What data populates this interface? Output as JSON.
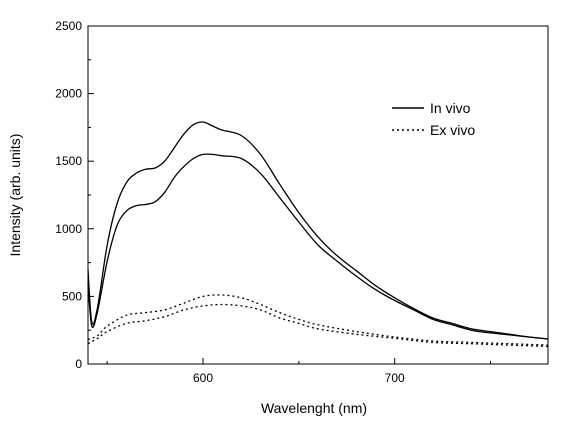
{
  "chart_data": {
    "type": "line",
    "title": "",
    "xlabel": "Wavelenght (nm)",
    "ylabel": "Intensity (arb. units)",
    "xlim": [
      540,
      780
    ],
    "ylim": [
      0,
      2500
    ],
    "x_ticks": [
      600,
      700
    ],
    "y_ticks": [
      0,
      500,
      1000,
      1500,
      2000,
      2500
    ],
    "grid": false,
    "legend_position": "top-right",
    "legend": [
      {
        "name": "In vivo",
        "style": "solid"
      },
      {
        "name": "Ex vivo",
        "style": "dotted"
      }
    ],
    "series": [
      {
        "name": "In vivo",
        "style": "solid",
        "color": "#000000",
        "x": [
          540,
          542,
          545,
          550,
          555,
          560,
          565,
          570,
          575,
          580,
          585,
          590,
          595,
          600,
          605,
          610,
          620,
          630,
          640,
          650,
          660,
          670,
          680,
          690,
          700,
          710,
          720,
          730,
          740,
          750,
          760,
          770,
          780
        ],
        "y": [
          700,
          310,
          420,
          880,
          1180,
          1340,
          1410,
          1440,
          1450,
          1500,
          1600,
          1700,
          1770,
          1790,
          1760,
          1730,
          1690,
          1550,
          1330,
          1120,
          940,
          800,
          690,
          580,
          490,
          410,
          340,
          300,
          260,
          240,
          220,
          200,
          185
        ]
      },
      {
        "name": "In vivo",
        "style": "solid",
        "color": "#000000",
        "x": [
          540,
          542,
          545,
          550,
          555,
          560,
          565,
          570,
          575,
          580,
          585,
          590,
          595,
          600,
          605,
          610,
          620,
          630,
          640,
          650,
          660,
          670,
          680,
          690,
          700,
          710,
          720,
          730,
          740,
          750,
          760,
          770,
          780
        ],
        "y": [
          600,
          280,
          390,
          760,
          1020,
          1130,
          1170,
          1180,
          1200,
          1270,
          1380,
          1460,
          1520,
          1550,
          1550,
          1540,
          1520,
          1410,
          1230,
          1050,
          880,
          760,
          650,
          550,
          470,
          400,
          330,
          290,
          250,
          230,
          215,
          200,
          185
        ]
      },
      {
        "name": "Ex vivo",
        "style": "dotted",
        "color": "#000000",
        "x": [
          540,
          545,
          550,
          560,
          570,
          580,
          590,
          600,
          610,
          620,
          630,
          640,
          650,
          660,
          680,
          700,
          720,
          740,
          760,
          780
        ],
        "y": [
          180,
          210,
          280,
          360,
          380,
          400,
          450,
          500,
          510,
          490,
          440,
          380,
          330,
          290,
          240,
          200,
          170,
          160,
          150,
          140
        ]
      },
      {
        "name": "Ex vivo",
        "style": "dotted",
        "color": "#000000",
        "x": [
          540,
          545,
          550,
          560,
          570,
          580,
          590,
          600,
          610,
          620,
          630,
          640,
          650,
          660,
          680,
          700,
          720,
          740,
          760,
          780
        ],
        "y": [
          150,
          190,
          240,
          300,
          320,
          350,
          400,
          430,
          440,
          430,
          400,
          340,
          300,
          260,
          220,
          190,
          160,
          150,
          140,
          130
        ]
      }
    ]
  }
}
